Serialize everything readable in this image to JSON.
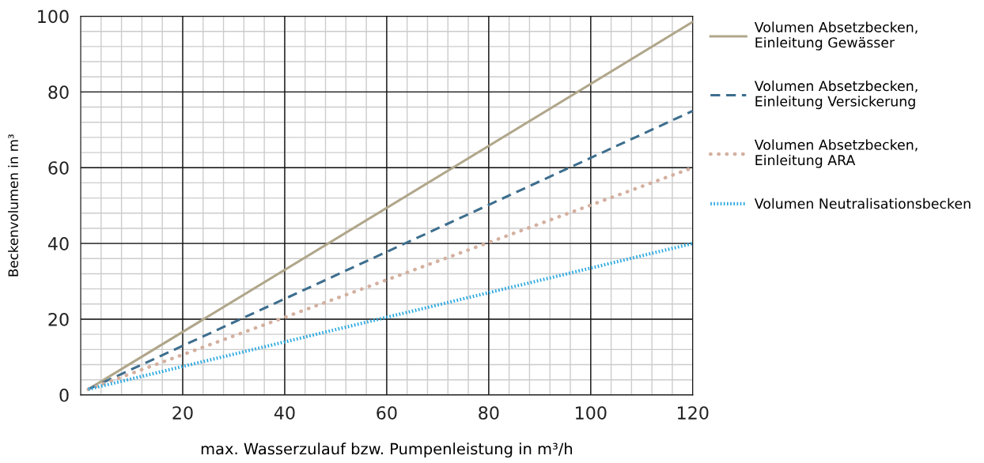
{
  "chart_data": {
    "type": "line",
    "xlabel": "max. Wasserzulauf bzw. Pumpenleistung in m³/h",
    "ylabel": "Beckenvolumen in m³",
    "x": [
      1.5,
      120
    ],
    "series": [
      {
        "name": "Volumen Absetzbecken,\nEinleitung Gewässer",
        "color": "#b0a68a",
        "line_style": "solid",
        "values": [
          1.5,
          98.5
        ]
      },
      {
        "name": "Volumen Absetzbecken,\nEinleitung Versickerung",
        "color": "#3d6e8e",
        "line_style": "dashed",
        "values": [
          1.5,
          75
        ]
      },
      {
        "name": "Volumen Absetzbecken,\nEinleitung ARA",
        "color": "#d4b0a0",
        "line_style": "dotted",
        "values": [
          1.5,
          60
        ]
      },
      {
        "name": "Volumen Neutralisationsbecken",
        "color": "#29a8e0",
        "line_style": "dotted",
        "values": [
          1.5,
          40
        ]
      }
    ],
    "xlim": [
      0,
      120
    ],
    "xticks": [
      20,
      40,
      60,
      80,
      100,
      120
    ],
    "ylim": [
      0,
      100
    ],
    "yticks": [
      0,
      20,
      40,
      60,
      80,
      100
    ],
    "grid": true,
    "legend": "right",
    "marker": "none"
  }
}
